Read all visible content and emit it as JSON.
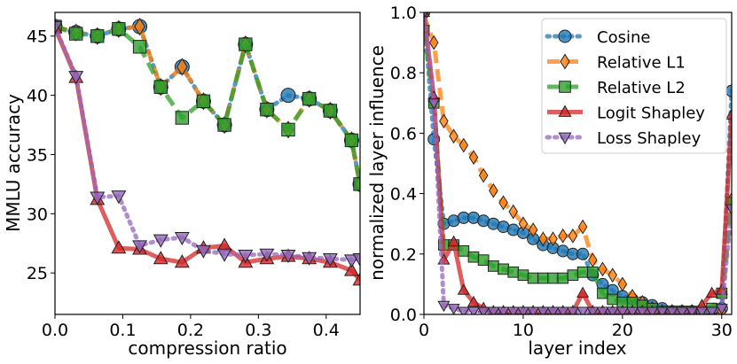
{
  "chart_data": [
    {
      "type": "line",
      "title": "",
      "xlabel": "compression ratio",
      "ylabel": "MMLU accuracy",
      "xlim": [
        0.0,
        0.45
      ],
      "ylim": [
        21.5,
        47.0
      ],
      "xticks": [
        0.0,
        0.1,
        0.2,
        0.3,
        0.4
      ],
      "xtick_labels": [
        "0.0",
        "0.1",
        "0.2",
        "0.3",
        "0.4"
      ],
      "yticks": [
        25,
        30,
        35,
        40,
        45
      ],
      "ytick_labels": [
        "25",
        "30",
        "35",
        "40",
        "45"
      ],
      "x": [
        0.0,
        0.031,
        0.0625,
        0.094,
        0.125,
        0.156,
        0.1875,
        0.219,
        0.25,
        0.281,
        0.3125,
        0.344,
        0.375,
        0.406,
        0.4375,
        0.45
      ],
      "series": [
        {
          "name": "Cosine",
          "color": "#1f77b4",
          "marker": "circle",
          "dash": "dot",
          "values": [
            45.8,
            45.3,
            45.0,
            45.6,
            45.8,
            40.7,
            42.4,
            39.5,
            37.5,
            44.3,
            38.8,
            40.0,
            39.7,
            38.7,
            36.2,
            32.5
          ]
        },
        {
          "name": "Relative L1",
          "color": "#ff7f0e",
          "marker": "diamond",
          "dash": "dash",
          "values": [
            45.8,
            45.3,
            45.0,
            45.6,
            45.8,
            40.7,
            42.4,
            39.5,
            37.5,
            44.3,
            38.8,
            37.1,
            39.7,
            38.7,
            36.2,
            32.5
          ]
        },
        {
          "name": "Relative L2",
          "color": "#2ca02c",
          "marker": "square",
          "dash": "dash",
          "values": [
            45.8,
            45.2,
            45.0,
            45.6,
            44.1,
            40.7,
            38.1,
            39.5,
            37.5,
            44.3,
            38.8,
            37.1,
            39.7,
            38.7,
            36.2,
            32.5
          ]
        },
        {
          "name": "Logit Shapley",
          "color": "#d62728",
          "marker": "triangle-up",
          "dash": "solid",
          "values": [
            45.7,
            41.5,
            31.2,
            27.1,
            27.0,
            26.2,
            25.9,
            27.1,
            27.3,
            25.9,
            26.2,
            26.4,
            26.2,
            25.9,
            25.2,
            24.4
          ]
        },
        {
          "name": "Loss Shapley",
          "color": "#9467bd",
          "marker": "triangle-down",
          "dash": "dot",
          "values": [
            45.8,
            41.6,
            31.4,
            31.5,
            27.3,
            27.8,
            28.0,
            26.9,
            26.6,
            26.5,
            26.6,
            26.5,
            26.3,
            26.2,
            26.1,
            26.2
          ]
        }
      ]
    },
    {
      "type": "line",
      "title": "",
      "xlabel": "layer index",
      "ylabel": "normalized layer influence",
      "xlim": [
        0,
        31
      ],
      "ylim": [
        0.0,
        1.0
      ],
      "xticks": [
        0,
        10,
        20,
        30
      ],
      "xtick_labels": [
        "0",
        "10",
        "20",
        "30"
      ],
      "yticks": [
        0.0,
        0.2,
        0.4,
        0.6,
        0.8,
        1.0
      ],
      "ytick_labels": [
        "0.0",
        "0.2",
        "0.4",
        "0.6",
        "0.8",
        "1.0"
      ],
      "legend_position": "upper-right",
      "x": [
        0,
        1,
        2,
        3,
        4,
        5,
        6,
        7,
        8,
        9,
        10,
        11,
        12,
        13,
        14,
        15,
        16,
        17,
        18,
        19,
        20,
        21,
        22,
        23,
        24,
        25,
        26,
        27,
        28,
        29,
        30,
        31
      ],
      "series": [
        {
          "name": "Cosine",
          "color": "#1f77b4",
          "marker": "circle",
          "dash": "dot",
          "values": [
            1.0,
            0.58,
            0.3,
            0.31,
            0.32,
            0.32,
            0.31,
            0.3,
            0.29,
            0.28,
            0.27,
            0.25,
            0.23,
            0.22,
            0.21,
            0.2,
            0.2,
            0.13,
            0.1,
            0.08,
            0.06,
            0.05,
            0.04,
            0.03,
            0.02,
            0.01,
            0.01,
            0.01,
            0.01,
            0.01,
            0.02,
            0.74
          ]
        },
        {
          "name": "Relative L1",
          "color": "#ff7f0e",
          "marker": "diamond",
          "dash": "dash",
          "values": [
            0.99,
            0.9,
            0.64,
            0.59,
            0.56,
            0.52,
            0.46,
            0.41,
            0.37,
            0.34,
            0.3,
            0.28,
            0.25,
            0.25,
            0.26,
            0.26,
            0.29,
            0.18,
            0.15,
            0.13,
            0.1,
            0.06,
            0.04,
            0.02,
            0.01,
            0.01,
            0.01,
            0.01,
            0.01,
            0.01,
            0.01,
            0.38
          ]
        },
        {
          "name": "Relative L2",
          "color": "#2ca02c",
          "marker": "square",
          "dash": "dash",
          "values": [
            0.94,
            0.7,
            0.23,
            0.23,
            0.21,
            0.19,
            0.18,
            0.16,
            0.15,
            0.14,
            0.13,
            0.12,
            0.12,
            0.12,
            0.12,
            0.13,
            0.14,
            0.14,
            0.07,
            0.05,
            0.04,
            0.04,
            0.03,
            0.02,
            0.01,
            0.01,
            0.01,
            0.01,
            0.01,
            0.02,
            0.07,
            0.37
          ]
        },
        {
          "name": "Logit Shapley",
          "color": "#d62728",
          "marker": "triangle-up",
          "dash": "solid",
          "values": [
            1.0,
            0.72,
            0.18,
            0.24,
            0.08,
            0.04,
            0.02,
            0.01,
            0.01,
            0.01,
            0.01,
            0.01,
            0.01,
            0.01,
            0.01,
            0.01,
            0.07,
            0.01,
            0.01,
            0.01,
            0.01,
            0.01,
            0.01,
            0.01,
            0.01,
            0.01,
            0.01,
            0.01,
            0.03,
            0.07,
            0.08,
            0.66
          ]
        },
        {
          "name": "Loss Shapley",
          "color": "#9467bd",
          "marker": "triangle-down",
          "dash": "dot",
          "values": [
            1.0,
            0.7,
            0.03,
            0.02,
            0.01,
            0.01,
            0.01,
            0.01,
            0.01,
            0.01,
            0.01,
            0.01,
            0.01,
            0.01,
            0.01,
            0.01,
            0.01,
            0.01,
            0.01,
            0.01,
            0.01,
            0.01,
            0.01,
            0.01,
            0.01,
            0.01,
            0.01,
            0.01,
            0.01,
            0.01,
            0.02,
            0.35
          ]
        }
      ]
    }
  ]
}
